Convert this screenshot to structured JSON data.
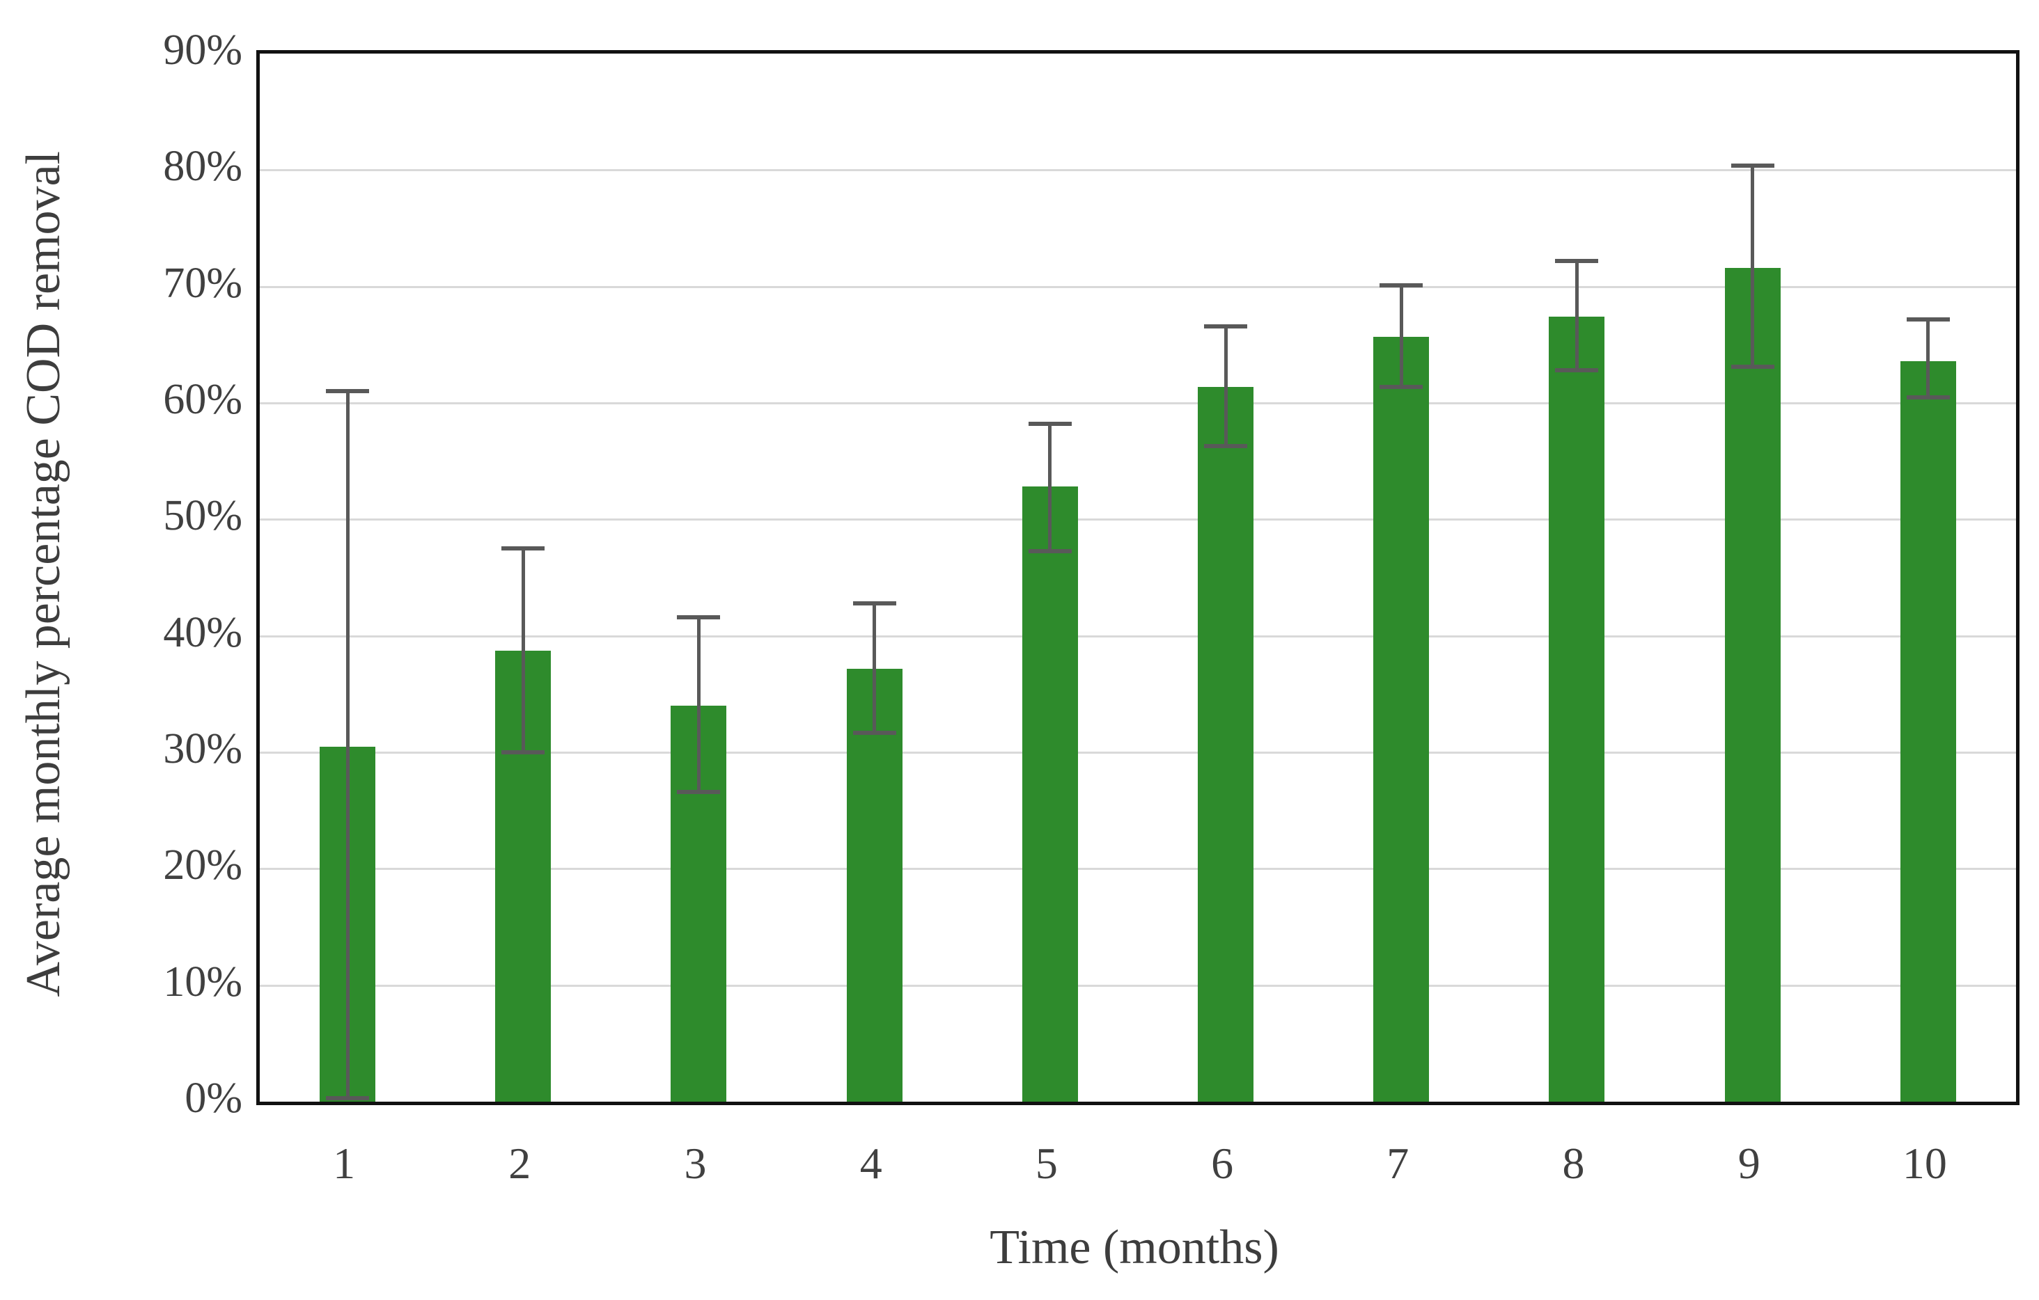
{
  "chart_data": {
    "type": "bar",
    "title": "",
    "xlabel": "Time (months)",
    "ylabel": "Average monthly percentage COD removal",
    "categories": [
      "1",
      "2",
      "3",
      "4",
      "5",
      "6",
      "7",
      "8",
      "9",
      "10"
    ],
    "values": [
      30.5,
      38.7,
      34.0,
      37.2,
      52.8,
      61.4,
      65.7,
      67.4,
      71.6,
      63.6
    ],
    "error_high": [
      61.0,
      47.5,
      41.6,
      42.8,
      58.2,
      66.6,
      70.1,
      72.2,
      80.4,
      67.2
    ],
    "error_low": [
      0.3,
      30.0,
      26.6,
      31.7,
      47.3,
      56.3,
      61.4,
      62.8,
      63.1,
      60.5
    ],
    "ylim": [
      0,
      90
    ],
    "ytick_step": 10,
    "ytick_format": "percent",
    "ytick_labels": [
      "0%",
      "10%",
      "20%",
      "30%",
      "40%",
      "50%",
      "60%",
      "70%",
      "80%",
      "90%"
    ],
    "grid": "horizontal",
    "legend": "none",
    "bar_color": "#2e8b2c",
    "error_color": "#595959",
    "gridline_color": "#d9d9d9",
    "frame_color": "#111111",
    "text_color": "#404040"
  }
}
